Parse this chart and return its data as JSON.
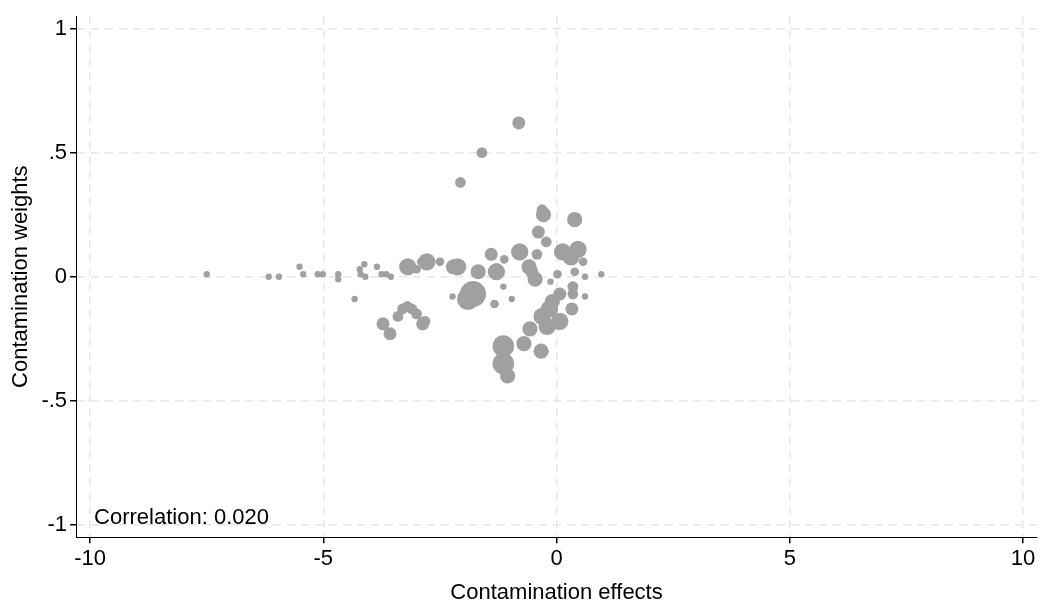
{
  "chart_data": {
    "type": "bubble",
    "xlabel": "Contamination effects",
    "ylabel": "Contamination weights",
    "annotations": [
      "Correlation: 0.020"
    ],
    "xlim": [
      -10.3,
      10.3
    ],
    "xticks": [
      -10,
      -5,
      0,
      5,
      10
    ],
    "ylim": [
      -1.05,
      1.05
    ],
    "yticks": [
      {
        "value": -1,
        "label": "-1"
      },
      {
        "value": -0.5,
        "label": "-.5"
      },
      0,
      {
        "value": 0.5,
        "label": ".5"
      },
      1
    ],
    "grid": true,
    "legend": false,
    "series": [
      {
        "color": "#a0a0a0",
        "x": [
          -7.5,
          -6.17,
          -5.95,
          -5.51,
          -5.43,
          -5.12,
          -5.01,
          -4.68,
          -4.68,
          -4.33,
          -4.22,
          -4.2,
          -4.12,
          -4.1,
          -3.85,
          -3.75,
          -3.65,
          -3.55,
          -3.19,
          -2.78,
          -2.9,
          -3.0,
          -2.5,
          -2.12,
          -3.72,
          -3.57,
          -3.4,
          -3.3,
          -3.2,
          -3.1,
          -3.0,
          -2.87,
          -2.23,
          -0.81,
          -1.6,
          -2.06,
          -0.31,
          -0.28,
          0.39,
          -0.39,
          -0.22,
          -0.42,
          -0.79,
          -1.4,
          -1.12,
          0.13,
          0.46,
          0.31,
          0.57,
          -2.21,
          -1.68,
          -1.29,
          -0.59,
          -0.46,
          -0.53,
          0.39,
          0.02,
          0.61,
          0.96,
          -0.13,
          -1.14,
          -1.79,
          -1.9,
          -1.33,
          -0.96,
          0.35,
          0.35,
          0.61,
          0.07,
          -0.09,
          -0.15,
          0.33,
          -0.31,
          0.07,
          -0.2,
          -0.57,
          -0.7,
          -0.33,
          -1.14,
          -1.14,
          -1.05,
          -2.82
        ],
        "values": [
          0.01,
          0.0,
          0.0,
          0.04,
          0.01,
          0.01,
          0.01,
          -0.01,
          0.01,
          -0.09,
          0.03,
          0.01,
          0.05,
          0.0,
          0.04,
          0.01,
          0.01,
          0.0,
          0.04,
          0.06,
          0.06,
          0.03,
          0.06,
          0.04,
          -0.19,
          -0.23,
          -0.16,
          -0.13,
          -0.12,
          -0.13,
          -0.15,
          -0.19,
          -0.08,
          0.62,
          0.5,
          0.38,
          0.27,
          0.25,
          0.23,
          0.18,
          0.14,
          0.09,
          0.1,
          0.09,
          0.07,
          0.1,
          0.11,
          0.08,
          0.06,
          0.04,
          0.02,
          0.02,
          0.04,
          -0.01,
          0.02,
          0.02,
          0.01,
          0.0,
          0.01,
          -0.02,
          -0.04,
          -0.07,
          -0.09,
          -0.11,
          -0.09,
          -0.04,
          -0.07,
          -0.08,
          -0.07,
          -0.1,
          -0.13,
          -0.13,
          -0.16,
          -0.18,
          -0.2,
          -0.21,
          -0.27,
          -0.3,
          -0.28,
          -0.35,
          -0.4,
          -0.18
        ],
        "sizes": [
          0.06,
          0.06,
          0.06,
          0.06,
          0.06,
          0.06,
          0.06,
          0.06,
          0.06,
          0.06,
          0.06,
          0.06,
          0.06,
          0.06,
          0.06,
          0.06,
          0.06,
          0.06,
          0.44,
          0.44,
          0.11,
          0.11,
          0.11,
          0.44,
          0.25,
          0.25,
          0.17,
          0.17,
          0.17,
          0.17,
          0.17,
          0.25,
          0.06,
          0.25,
          0.17,
          0.17,
          0.17,
          0.34,
          0.34,
          0.25,
          0.17,
          0.17,
          0.44,
          0.25,
          0.11,
          0.44,
          0.44,
          0.44,
          0.11,
          0.34,
          0.34,
          0.44,
          0.34,
          0.34,
          0.25,
          0.11,
          0.11,
          0.06,
          0.06,
          0.06,
          0.06,
          1,
          0.69,
          0.11,
          0.06,
          0.17,
          0.17,
          0.06,
          0.25,
          0.34,
          0.44,
          0.25,
          0.44,
          0.44,
          0.44,
          0.34,
          0.34,
          0.34,
          0.69,
          0.69,
          0.34,
          0.17
        ]
      }
    ]
  }
}
